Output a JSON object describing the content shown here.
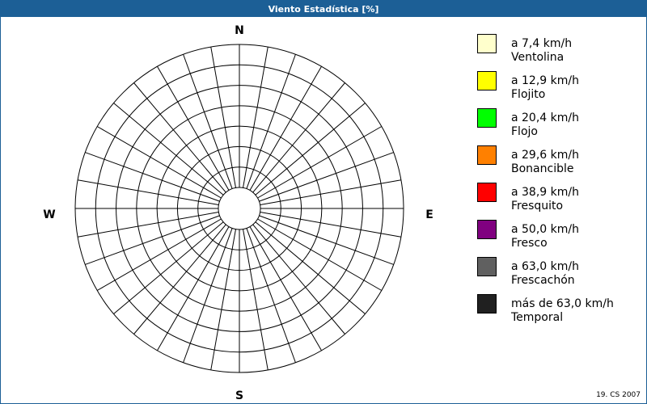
{
  "window": {
    "title": "Viento Estadística [%]",
    "footer": "19. CS 2007"
  },
  "chart_data": {
    "type": "polar-rose",
    "directions": {
      "n": "N",
      "e": "E",
      "s": "S",
      "w": "W"
    },
    "rings": 7,
    "spokes": 36,
    "legend": [
      {
        "range": "a 7,4 km/h",
        "name": "Ventolina",
        "color": "#ffffcc"
      },
      {
        "range": "a 12,9 km/h",
        "name": "Flojito",
        "color": "#ffff00"
      },
      {
        "range": "a 20,4 km/h",
        "name": "Flojo",
        "color": "#00ff00"
      },
      {
        "range": "a 29,6 km/h",
        "name": "Bonancible",
        "color": "#ff8000"
      },
      {
        "range": "a 38,9 km/h",
        "name": "Fresquito",
        "color": "#ff0000"
      },
      {
        "range": "a 50,0 km/h",
        "name": "Fresco",
        "color": "#800080"
      },
      {
        "range": "a 63,0 km/h",
        "name": "Frescachón",
        "color": "#606060"
      },
      {
        "range": "más de 63,0 km/h",
        "name": "Temporal",
        "color": "#202020"
      }
    ]
  }
}
